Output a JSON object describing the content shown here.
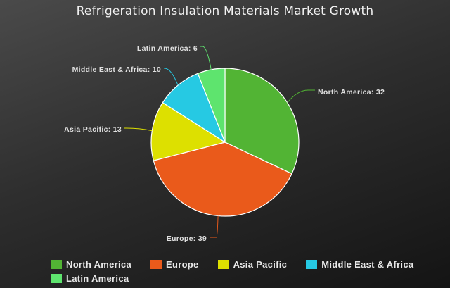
{
  "chart_data": {
    "type": "pie",
    "title": "Refrigeration Insulation Materials Market Growth",
    "categories": [
      "North America",
      "Europe",
      "Asia Pacific",
      "Middle East & Africa",
      "Latin America"
    ],
    "values": [
      32,
      39,
      13,
      10,
      6
    ],
    "data_labels": [
      "North America: 32",
      "Europe: 39",
      "Asia Pacific: 13",
      "Middle East & Africa: 10",
      "Latin America: 6"
    ],
    "colors": [
      "#52b434",
      "#ea5a1b",
      "#dde000",
      "#26c9e3",
      "#5ee46e"
    ],
    "legend_position": "bottom-left",
    "start_angle": "12 o'clock, clockwise"
  }
}
